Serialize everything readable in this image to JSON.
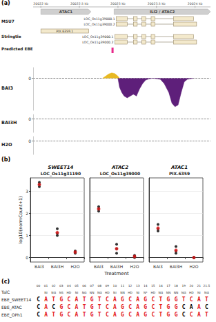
{
  "panel_a": {
    "label": "(a)",
    "xlim": [
      20021.9,
      20024.2
    ],
    "xticks": [
      {
        "value": 20022,
        "label": "20022 kb"
      },
      {
        "value": 20022.5,
        "label": "20022.5 kb"
      },
      {
        "value": 20023,
        "label": "20023 kb"
      },
      {
        "value": 20023.5,
        "label": "20023.5 kb"
      },
      {
        "value": 20024,
        "label": "20024 kb"
      }
    ],
    "genes": [
      {
        "name": "ATAC1",
        "start": 20022.0,
        "end": 20022.65
      },
      {
        "name": "ILI2 / ATAC2",
        "start": 20022.95,
        "end": 20024.2
      }
    ],
    "annotation_tracks": [
      {
        "name": "MSU7",
        "transcripts": [
          {
            "name": "LOC_Os11g39000.1",
            "exons": [
              [
                20022.98,
                20023.12
              ],
              [
                20023.2,
                20023.25
              ],
              [
                20023.31,
                20023.36
              ],
              [
                20023.43,
                20023.48
              ],
              [
                20023.72,
                20023.98
              ]
            ]
          },
          {
            "name": "LOC_Os11g39000.2",
            "exons": [
              [
                20022.98,
                20023.12
              ],
              [
                20023.2,
                20023.25
              ],
              [
                20023.31,
                20023.36
              ],
              [
                20023.43,
                20023.48
              ],
              [
                20023.72,
                20024.02
              ]
            ]
          }
        ]
      },
      {
        "name": "Stringtie",
        "transcripts": [
          {
            "name": "PIX.6359.1",
            "exons": [
              [
                20022.0,
                20022.62
              ]
            ]
          },
          {
            "name": "LOC_Os11g39000.1",
            "exons": [
              [
                20022.96,
                20023.12
              ],
              [
                20023.2,
                20023.25
              ],
              [
                20023.31,
                20023.36
              ],
              [
                20023.43,
                20023.48
              ],
              [
                20023.72,
                20023.98
              ]
            ]
          },
          {
            "name": "LOC_Os11g39000.2",
            "exons": [
              [
                20022.96,
                20023.12
              ],
              [
                20023.2,
                20023.25
              ],
              [
                20023.31,
                20023.36
              ],
              [
                20023.43,
                20023.48
              ],
              [
                20023.72,
                20024.02
              ]
            ]
          }
        ]
      },
      {
        "name": "Predicted EBE",
        "sites": [
          20022.93
        ],
        "color": "#e7298a"
      }
    ],
    "coverage_tracks": [
      {
        "name": "BAI3",
        "type": "area",
        "ylim": [
          -9,
          3
        ],
        "yticks": [
          0
        ],
        "grid": true,
        "series": [
          {
            "color": "#e8b923",
            "points": [
              [
                20022.8,
                0
              ],
              [
                20022.84,
                0.6
              ],
              [
                20022.88,
                1.2
              ],
              [
                20022.92,
                1.5
              ],
              [
                20022.96,
                1.3
              ],
              [
                20023.0,
                0.6
              ],
              [
                20023.02,
                0
              ]
            ]
          },
          {
            "color": "#5e1f7a",
            "points": [
              [
                20023.0,
                0
              ],
              [
                20023.02,
                -2.5
              ],
              [
                20023.05,
                -4
              ],
              [
                20023.08,
                -5
              ],
              [
                20023.12,
                -5.5
              ],
              [
                20023.16,
                -5
              ],
              [
                20023.2,
                -4.5
              ],
              [
                20023.24,
                -5
              ],
              [
                20023.28,
                -3
              ],
              [
                20023.32,
                -1.5
              ],
              [
                20023.36,
                -0.5
              ],
              [
                20023.4,
                -0.2
              ],
              [
                20023.45,
                0
              ],
              [
                20023.55,
                -0.3
              ],
              [
                20023.6,
                -1.5
              ],
              [
                20023.66,
                -4
              ],
              [
                20023.7,
                -7
              ],
              [
                20023.74,
                -8
              ],
              [
                20023.78,
                -7.5
              ],
              [
                20023.82,
                -4
              ],
              [
                20023.86,
                -1
              ],
              [
                20023.9,
                -0.3
              ],
              [
                20023.98,
                0
              ]
            ]
          }
        ]
      },
      {
        "name": "BAI3H",
        "type": "area",
        "ylim": [
          -9,
          3
        ],
        "yticks": [
          0
        ],
        "grid": true,
        "series": []
      },
      {
        "name": "H2O",
        "type": "area",
        "ylim": [
          -9,
          3
        ],
        "yticks": [
          0
        ],
        "grid": true,
        "series": []
      }
    ]
  },
  "panel_b": {
    "label": "(b)",
    "x_label": "Treatment",
    "y_label": "log10(normCount+1)"
  },
  "chart_data": [
    {
      "type": "scatter",
      "title": "SWEET14",
      "subtitle": "LOC_Os11g31190",
      "categories": [
        "BAI3",
        "BAI3H",
        "H2O"
      ],
      "ylim": [
        -0.2,
        3.6
      ],
      "yticks": [
        0,
        1,
        2,
        3
      ],
      "grid": true,
      "replicates": {
        "color": "#000000",
        "values": [
          [
            3.2,
            3.4,
            3.3
          ],
          [
            1.1,
            1.3,
            1.0
          ],
          [
            0.2,
            0.3,
            0.25
          ]
        ]
      },
      "mean": {
        "color": "#e41a1c",
        "values": [
          3.3,
          1.13,
          0.25
        ]
      }
    },
    {
      "type": "scatter",
      "title": "ATAC2",
      "subtitle": "LOC_Os11g39000",
      "categories": [
        "BAI3",
        "BAI3H",
        "H2O"
      ],
      "ylim": [
        -0.2,
        3.6
      ],
      "yticks": [
        0,
        1,
        2,
        3
      ],
      "grid": true,
      "replicates": {
        "color": "#000000",
        "values": [
          [
            2.1,
            2.3,
            2.2
          ],
          [
            0.4,
            0.6,
            0.2
          ],
          [
            0.05,
            0.0,
            0.1
          ]
        ]
      },
      "mean": {
        "color": "#e41a1c",
        "values": [
          2.2,
          0.4,
          0.05
        ]
      }
    },
    {
      "type": "scatter",
      "title": "ATAC1",
      "subtitle": "PIX.6359",
      "categories": [
        "BAI3",
        "BAI3H",
        "H2O"
      ],
      "ylim": [
        -0.2,
        3.6
      ],
      "yticks": [
        0,
        1,
        2,
        3
      ],
      "grid": true,
      "replicates": {
        "color": "#000000",
        "values": [
          [
            1.3,
            1.5,
            1.2
          ],
          [
            0.3,
            0.5,
            0.2
          ],
          [
            0.0,
            0.0,
            0.0
          ]
        ]
      },
      "mean": {
        "color": "#e41a1c",
        "values": [
          1.33,
          0.33,
          0.0
        ]
      }
    }
  ],
  "panel_c": {
    "label": "(c)",
    "positions": [
      "00",
      "01",
      "02",
      "03",
      "04",
      "05",
      "06",
      "07",
      "08",
      "09",
      "10",
      "11",
      "12",
      "13",
      "14",
      "15",
      "16",
      "17",
      "18",
      "19",
      "20",
      "21",
      "21.5"
    ],
    "rvd_row": {
      "name": "TalC",
      "rvds": [
        "NI",
        "NG",
        "NS",
        "HD",
        "NI",
        "NG",
        "NN",
        "NG",
        "HD",
        "NI",
        "NN",
        "HD",
        "NI",
        "N*",
        "HD",
        "NG",
        "NN",
        "NN",
        "NG",
        "HD",
        "NI",
        "NG"
      ]
    },
    "sequences": [
      {
        "name": "EBE_SWEET14",
        "seq": "CATGCATGTCAGCAGCTGGTCAT"
      },
      {
        "name": "EBE_ATAC",
        "seq": "CACGCATGTCAGCAGCTGGCAAC"
      },
      {
        "name": "EBE_OPh1",
        "seq": "CATGCATGTCAGCAGCTGGCCAT"
      }
    ],
    "match_color": "#e41a1c",
    "mismatch_color": "#000000"
  }
}
